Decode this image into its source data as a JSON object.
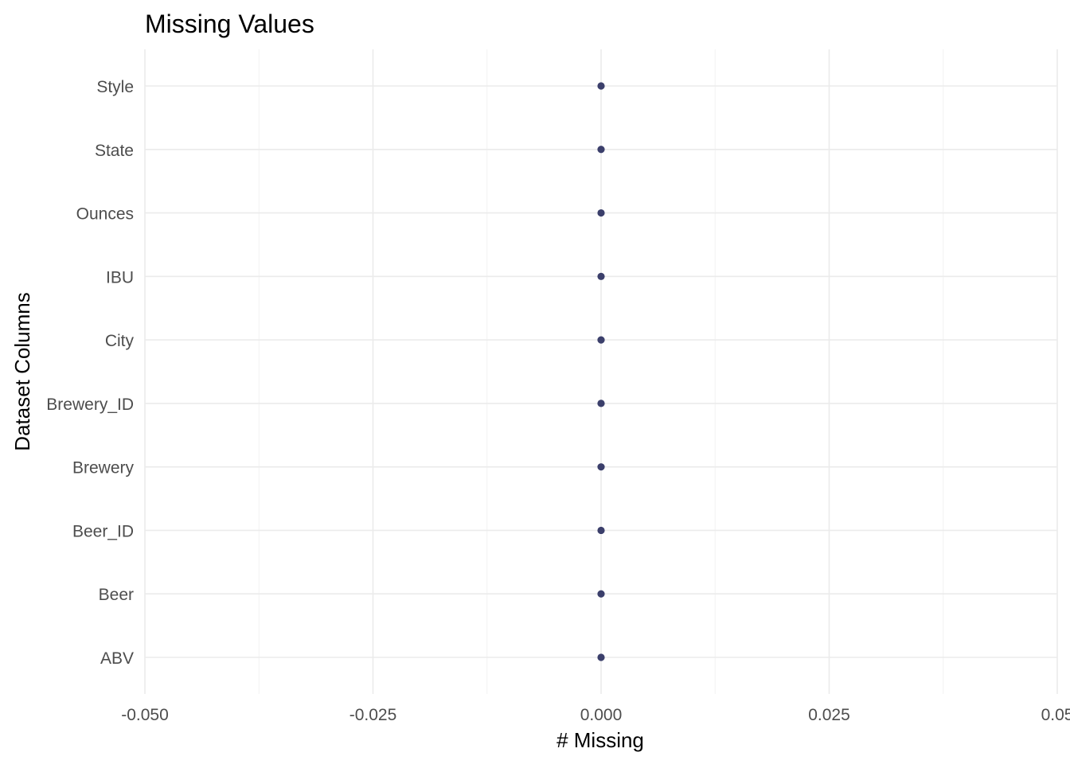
{
  "chart_data": {
    "type": "scatter",
    "title": "Missing Values",
    "xlabel": "# Missing",
    "ylabel": "Dataset Columns",
    "categories": [
      "ABV",
      "Beer",
      "Beer_ID",
      "Brewery",
      "Brewery_ID",
      "City",
      "IBU",
      "Ounces",
      "State",
      "Style"
    ],
    "values": [
      0,
      0,
      0,
      0,
      0,
      0,
      0,
      0,
      0,
      0
    ],
    "xlim": [
      -0.05,
      0.05
    ],
    "x_ticks": [
      "-0.050",
      "-0.025",
      "0.000",
      "0.025",
      "0.05"
    ],
    "grid": true,
    "legend": "none",
    "point_color": "#3b3f6b"
  }
}
